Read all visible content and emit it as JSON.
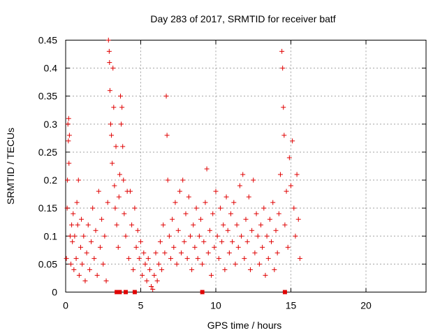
{
  "chart_data": {
    "type": "scatter",
    "title": "Day 283 of 2017, SRMTID for receiver batf",
    "xlabel": "GPS time / hours",
    "ylabel": "SRMTID / TECUs",
    "xlim": [
      0,
      24
    ],
    "ylim": [
      0,
      0.45
    ],
    "xticks": [
      "0",
      "5",
      "10",
      "15",
      "20"
    ],
    "yticks": [
      "0",
      "0.05",
      "0.1",
      "0.15",
      "0.2",
      "0.25",
      "0.3",
      "0.35",
      "0.4",
      "0.45"
    ],
    "grid": true,
    "marker": "+",
    "color": "#e00000",
    "series": [
      {
        "values": [
          [
            0.05,
            0.06
          ],
          [
            0.1,
            0.15
          ],
          [
            0.12,
            0.2
          ],
          [
            0.15,
            0.3
          ],
          [
            0.18,
            0.27
          ],
          [
            0.2,
            0.31
          ],
          [
            0.22,
            0.23
          ],
          [
            0.25,
            0.28
          ],
          [
            0.3,
            0.1
          ],
          [
            0.35,
            0.05
          ],
          [
            0.4,
            0.12
          ],
          [
            0.45,
            0.09
          ],
          [
            0.5,
            0.14
          ],
          [
            0.55,
            0.04
          ],
          [
            0.6,
            0.1
          ],
          [
            0.7,
            0.06
          ],
          [
            0.75,
            0.16
          ],
          [
            0.8,
            0.12
          ],
          [
            0.85,
            0.2
          ],
          [
            0.9,
            0.03
          ],
          [
            1.0,
            0.08
          ],
          [
            1.05,
            0.13
          ],
          [
            1.1,
            0.05
          ],
          [
            1.2,
            0.1
          ],
          [
            1.3,
            0.02
          ],
          [
            1.4,
            0.07
          ],
          [
            1.5,
            0.12
          ],
          [
            1.6,
            0.04
          ],
          [
            1.7,
            0.09
          ],
          [
            1.8,
            0.15
          ],
          [
            1.9,
            0.06
          ],
          [
            2.0,
            0.11
          ],
          [
            2.1,
            0.03
          ],
          [
            2.2,
            0.18
          ],
          [
            2.3,
            0.08
          ],
          [
            2.4,
            0.13
          ],
          [
            2.5,
            0.05
          ],
          [
            2.6,
            0.1
          ],
          [
            2.7,
            0.02
          ],
          [
            2.8,
            0.16
          ],
          [
            2.85,
            0.45
          ],
          [
            2.9,
            0.43
          ],
          [
            2.92,
            0.41
          ],
          [
            2.95,
            0.36
          ],
          [
            3.0,
            0.3
          ],
          [
            3.05,
            0.28
          ],
          [
            3.1,
            0.23
          ],
          [
            3.15,
            0.4
          ],
          [
            3.2,
            0.33
          ],
          [
            3.25,
            0.19
          ],
          [
            3.3,
            0.15
          ],
          [
            3.35,
            0.26
          ],
          [
            3.4,
            0.12
          ],
          [
            3.5,
            0.08
          ],
          [
            3.55,
            0.17
          ],
          [
            3.6,
            0.21
          ],
          [
            3.65,
            0.35
          ],
          [
            3.7,
            0.3
          ],
          [
            3.75,
            0.33
          ],
          [
            3.8,
            0.26
          ],
          [
            3.85,
            0.2
          ],
          [
            3.9,
            0.14
          ],
          [
            4.0,
            0.1
          ],
          [
            4.1,
            0.18
          ],
          [
            4.2,
            0.06
          ],
          [
            4.3,
            0.18
          ],
          [
            4.4,
            0.12
          ],
          [
            4.5,
            0.04
          ],
          [
            4.6,
            0.15
          ],
          [
            4.7,
            0.08
          ],
          [
            4.8,
            0.11
          ],
          [
            4.9,
            0.06
          ],
          [
            5.0,
            0.09
          ],
          [
            5.1,
            0.03
          ],
          [
            5.2,
            0.07
          ],
          [
            5.3,
            0.05
          ],
          [
            5.4,
            0.02
          ],
          [
            5.5,
            0.06
          ],
          [
            5.6,
            0.04
          ],
          [
            5.7,
            0.01
          ],
          [
            5.8,
            0.005
          ],
          [
            5.9,
            0.03
          ],
          [
            6.0,
            0.07
          ],
          [
            6.1,
            0.02
          ],
          [
            6.2,
            0.05
          ],
          [
            6.3,
            0.09
          ],
          [
            6.4,
            0.04
          ],
          [
            6.5,
            0.12
          ],
          [
            6.6,
            0.07
          ],
          [
            6.7,
            0.35
          ],
          [
            6.75,
            0.28
          ],
          [
            6.8,
            0.2
          ],
          [
            6.9,
            0.1
          ],
          [
            7.0,
            0.06
          ],
          [
            7.1,
            0.13
          ],
          [
            7.2,
            0.08
          ],
          [
            7.3,
            0.16
          ],
          [
            7.4,
            0.05
          ],
          [
            7.5,
            0.11
          ],
          [
            7.6,
            0.18
          ],
          [
            7.7,
            0.07
          ],
          [
            7.8,
            0.2
          ],
          [
            7.9,
            0.09
          ],
          [
            8.0,
            0.14
          ],
          [
            8.1,
            0.06
          ],
          [
            8.2,
            0.17
          ],
          [
            8.3,
            0.1
          ],
          [
            8.4,
            0.04
          ],
          [
            8.5,
            0.12
          ],
          [
            8.6,
            0.08
          ],
          [
            8.7,
            0.15
          ],
          [
            8.8,
            0.06
          ],
          [
            8.9,
            0.1
          ],
          [
            9.0,
            0.13
          ],
          [
            9.1,
            0.05
          ],
          [
            9.2,
            0.09
          ],
          [
            9.3,
            0.16
          ],
          [
            9.4,
            0.22
          ],
          [
            9.5,
            0.07
          ],
          [
            9.6,
            0.11
          ],
          [
            9.7,
            0.03
          ],
          [
            9.8,
            0.14
          ],
          [
            9.9,
            0.08
          ],
          [
            10.0,
            0.18
          ],
          [
            10.1,
            0.1
          ],
          [
            10.2,
            0.06
          ],
          [
            10.3,
            0.15
          ],
          [
            10.4,
            0.09
          ],
          [
            10.5,
            0.12
          ],
          [
            10.6,
            0.04
          ],
          [
            10.7,
            0.17
          ],
          [
            10.8,
            0.11
          ],
          [
            10.9,
            0.07
          ],
          [
            11.0,
            0.14
          ],
          [
            11.1,
            0.09
          ],
          [
            11.2,
            0.16
          ],
          [
            11.3,
            0.05
          ],
          [
            11.4,
            0.12
          ],
          [
            11.5,
            0.08
          ],
          [
            11.6,
            0.19
          ],
          [
            11.7,
            0.1
          ],
          [
            11.8,
            0.21
          ],
          [
            11.9,
            0.06
          ],
          [
            12.0,
            0.13
          ],
          [
            12.1,
            0.09
          ],
          [
            12.2,
            0.17
          ],
          [
            12.3,
            0.04
          ],
          [
            12.4,
            0.11
          ],
          [
            12.5,
            0.2
          ],
          [
            12.6,
            0.07
          ],
          [
            12.7,
            0.14
          ],
          [
            12.8,
            0.1
          ],
          [
            12.9,
            0.05
          ],
          [
            13.0,
            0.12
          ],
          [
            13.1,
            0.08
          ],
          [
            13.2,
            0.15
          ],
          [
            13.3,
            0.03
          ],
          [
            13.4,
            0.1
          ],
          [
            13.5,
            0.06
          ],
          [
            13.6,
            0.13
          ],
          [
            13.7,
            0.09
          ],
          [
            13.8,
            0.16
          ],
          [
            13.9,
            0.04
          ],
          [
            14.0,
            0.11
          ],
          [
            14.1,
            0.07
          ],
          [
            14.2,
            0.14
          ],
          [
            14.3,
            0.21
          ],
          [
            14.4,
            0.43
          ],
          [
            14.45,
            0.4
          ],
          [
            14.5,
            0.33
          ],
          [
            14.55,
            0.28
          ],
          [
            14.6,
            0.12
          ],
          [
            14.7,
            0.18
          ],
          [
            14.8,
            0.08
          ],
          [
            14.9,
            0.24
          ],
          [
            15.0,
            0.19
          ],
          [
            15.1,
            0.27
          ],
          [
            15.2,
            0.15
          ],
          [
            15.3,
            0.1
          ],
          [
            15.4,
            0.21
          ],
          [
            15.5,
            0.13
          ],
          [
            15.6,
            0.06
          ]
        ]
      }
    ],
    "zero_markers_x": [
      3.4,
      3.6,
      4.0,
      4.6,
      9.1,
      14.6
    ]
  }
}
